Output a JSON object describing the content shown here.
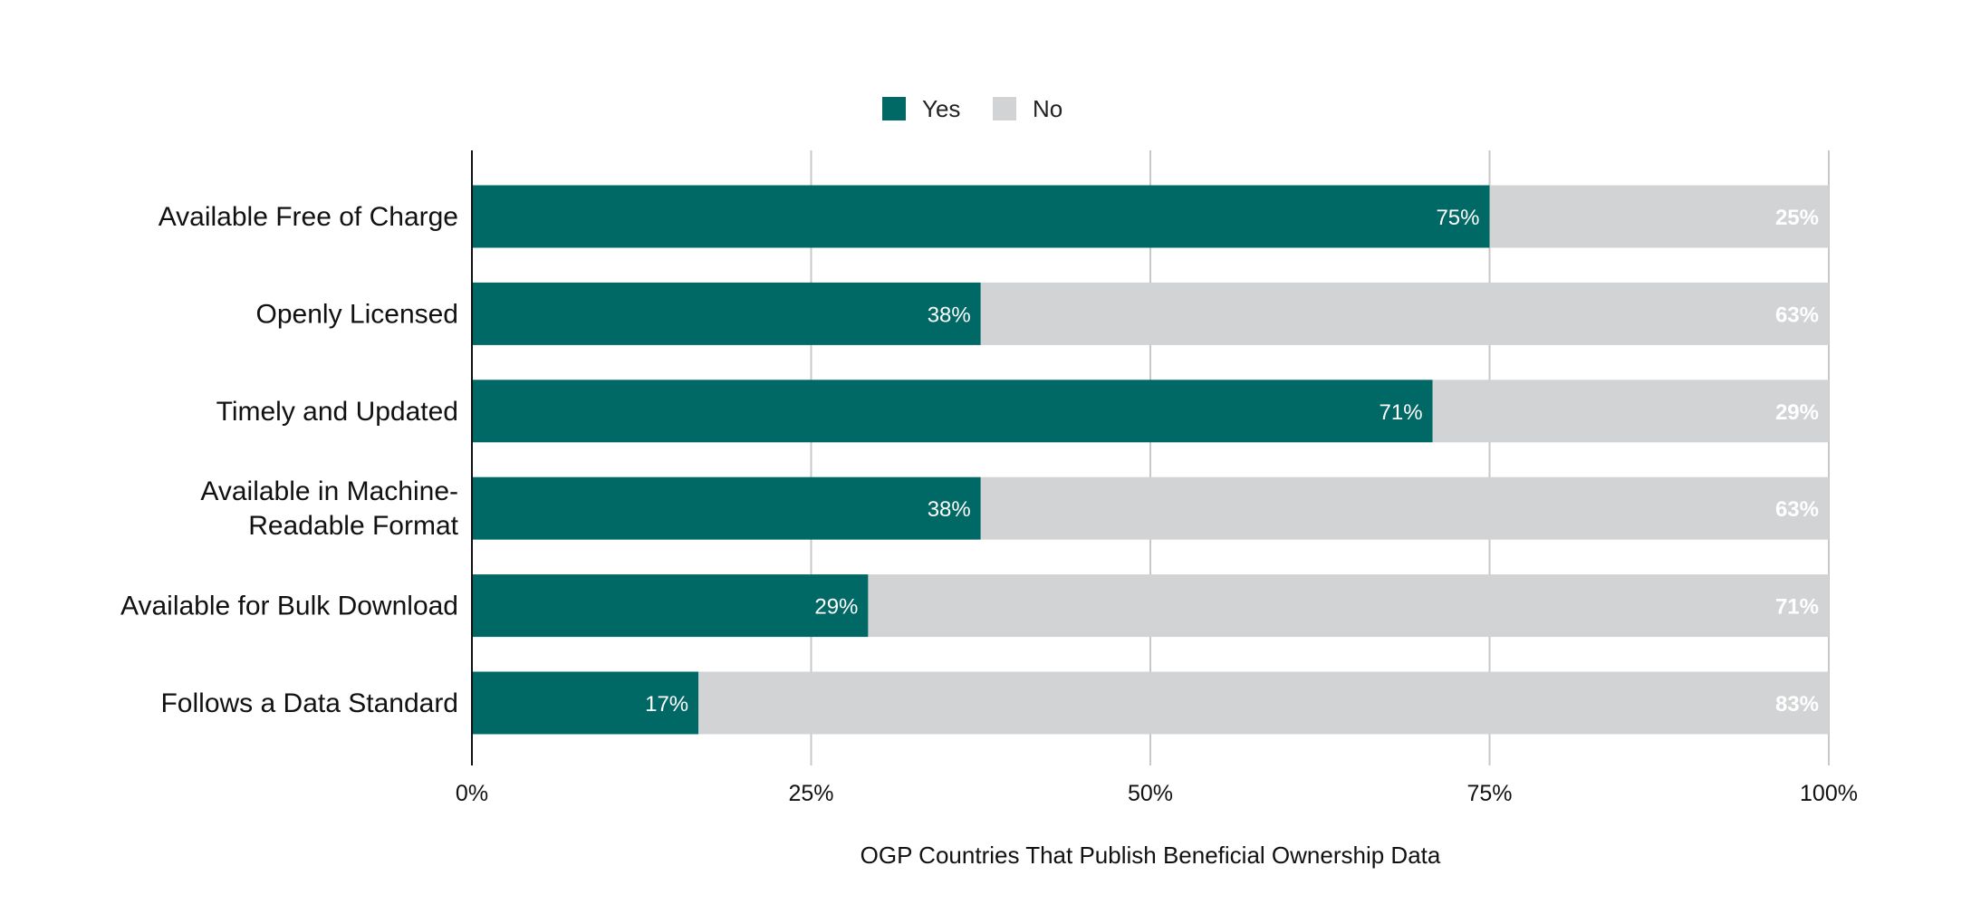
{
  "chart_data": {
    "type": "bar",
    "orientation": "horizontal",
    "stacked": true,
    "title": "",
    "xlabel": "OGP Countries That Publish Beneficial Ownership Data",
    "ylabel": "",
    "xlim": [
      0,
      100
    ],
    "x_ticks": [
      "0%",
      "25%",
      "50%",
      "75%",
      "100%"
    ],
    "grid": true,
    "legend_position": "top-center",
    "categories": [
      [
        "Available Free of Charge"
      ],
      [
        "Openly Licensed"
      ],
      [
        "Timely and Updated"
      ],
      [
        "Available in Machine-",
        "Readable Format"
      ],
      [
        "Available for Bulk Download"
      ],
      [
        "Follows a Data Standard"
      ]
    ],
    "series": [
      {
        "name": "Yes",
        "color": "#006865",
        "values": [
          75,
          37.5,
          70.8,
          37.5,
          29.2,
          16.7
        ],
        "labels": [
          "75%",
          "38%",
          "71%",
          "38%",
          "29%",
          "17%"
        ]
      },
      {
        "name": "No",
        "color": "#d1d3d4",
        "values": [
          25,
          62.5,
          29.2,
          62.5,
          70.8,
          83.3
        ],
        "labels": [
          "25%",
          "63%",
          "29%",
          "63%",
          "71%",
          "83%"
        ]
      }
    ]
  }
}
